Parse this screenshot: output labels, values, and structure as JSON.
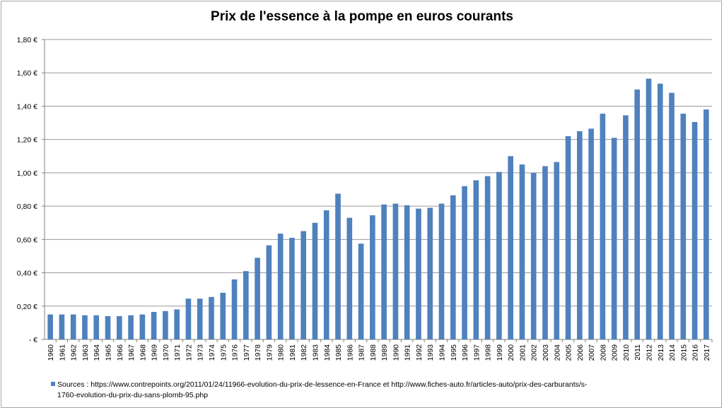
{
  "chart_data": {
    "type": "bar",
    "title": "Prix de l'essence à la pompe en euros courants",
    "xlabel": "",
    "ylabel": "",
    "ylim": [
      0,
      1.8
    ],
    "grid": true,
    "legend_position": "bottom",
    "bar_color": "#4f81bd",
    "y_ticks": [
      "-   €",
      "0,20 €",
      "0,40 €",
      "0,60 €",
      "0,80 €",
      "1,00 €",
      "1,20 €",
      "1,40 €",
      "1,60 €",
      "1,80 €"
    ],
    "y_tick_values": [
      0,
      0.2,
      0.4,
      0.6,
      0.8,
      1.0,
      1.2,
      1.4,
      1.6,
      1.8
    ],
    "categories": [
      "1960",
      "1961",
      "1962",
      "1963",
      "1964",
      "1965",
      "1966",
      "1967",
      "1968",
      "1969",
      "1970",
      "1971",
      "1972",
      "1973",
      "1974",
      "1975",
      "1976",
      "1977",
      "1978",
      "1979",
      "1980",
      "1981",
      "1982",
      "1983",
      "1984",
      "1985",
      "1986",
      "1987",
      "1988",
      "1989",
      "1990",
      "1991",
      "1992",
      "1993",
      "1994",
      "1995",
      "1996",
      "1997",
      "1998",
      "1999",
      "2000",
      "2001",
      "2002",
      "2003",
      "2004",
      "2005",
      "2006",
      "2007",
      "2008",
      "2009",
      "2010",
      "2011",
      "2012",
      "2013",
      "2014",
      "2015",
      "2016",
      "2017"
    ],
    "series": [
      {
        "name": "Sources : https://www.contrepoints.org/2011/01/24/11966-evolution-du-prix-de-lessence-en-France  et  http://www.fiches-auto.fr/articles-auto/prix-des-carburants/s-1760-evolution-du-prix-du-sans-plomb-95.php",
        "values": [
          0.15,
          0.15,
          0.15,
          0.145,
          0.145,
          0.14,
          0.14,
          0.145,
          0.15,
          0.165,
          0.17,
          0.18,
          0.245,
          0.245,
          0.255,
          0.28,
          0.36,
          0.41,
          0.49,
          0.565,
          0.635,
          0.61,
          0.65,
          0.7,
          0.775,
          0.875,
          0.73,
          0.575,
          0.745,
          0.81,
          0.815,
          0.805,
          0.785,
          0.79,
          0.815,
          0.865,
          0.92,
          0.955,
          0.98,
          1.005,
          1.1,
          1.05,
          1.0,
          1.04,
          1.065,
          1.22,
          1.25,
          1.265,
          1.355,
          1.21,
          1.345,
          1.5,
          1.565,
          1.535,
          1.48,
          1.355,
          1.305,
          1.38
        ]
      }
    ]
  },
  "legend": {
    "line1": "Sources : https://www.contrepoints.org/2011/01/24/11966-evolution-du-prix-de-lessence-en-France  et  http://www.fiches-auto.fr/articles-auto/prix-des-carburants/s-",
    "line2": "1760-evolution-du-prix-du-sans-plomb-95.php"
  }
}
